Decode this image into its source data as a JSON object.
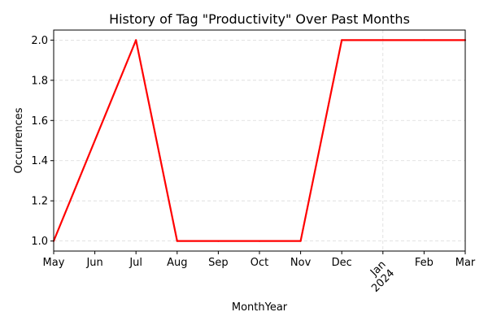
{
  "chart_data": {
    "type": "line",
    "title": "History of Tag \"Productivity\" Over Past Months",
    "xlabel": "MonthYear",
    "ylabel": "Occurrences",
    "x_tick_labels": [
      "May",
      "Jun",
      "Jul",
      "Aug",
      "Sep",
      "Oct",
      "Nov",
      "Dec",
      "Jan",
      "Feb",
      "Mar"
    ],
    "x_year_label": "2024",
    "y_tick_labels": [
      "1.0",
      "1.2",
      "1.4",
      "1.6",
      "1.8",
      "2.0"
    ],
    "ylim": [
      0.95,
      2.05
    ],
    "grid": true,
    "series": [
      {
        "color": "#ff0000",
        "points": [
          {
            "x": "2023-05",
            "y": 1
          },
          {
            "x": "2023-07",
            "y": 2
          },
          {
            "x": "2023-08",
            "y": 1
          },
          {
            "x": "2023-09",
            "y": 1
          },
          {
            "x": "2023-10",
            "y": 1
          },
          {
            "x": "2023-11",
            "y": 1
          },
          {
            "x": "2023-12",
            "y": 2
          },
          {
            "x": "2024-01",
            "y": 2
          },
          {
            "x": "2024-02",
            "y": 2
          },
          {
            "x": "2024-03",
            "y": 2
          }
        ]
      }
    ]
  }
}
